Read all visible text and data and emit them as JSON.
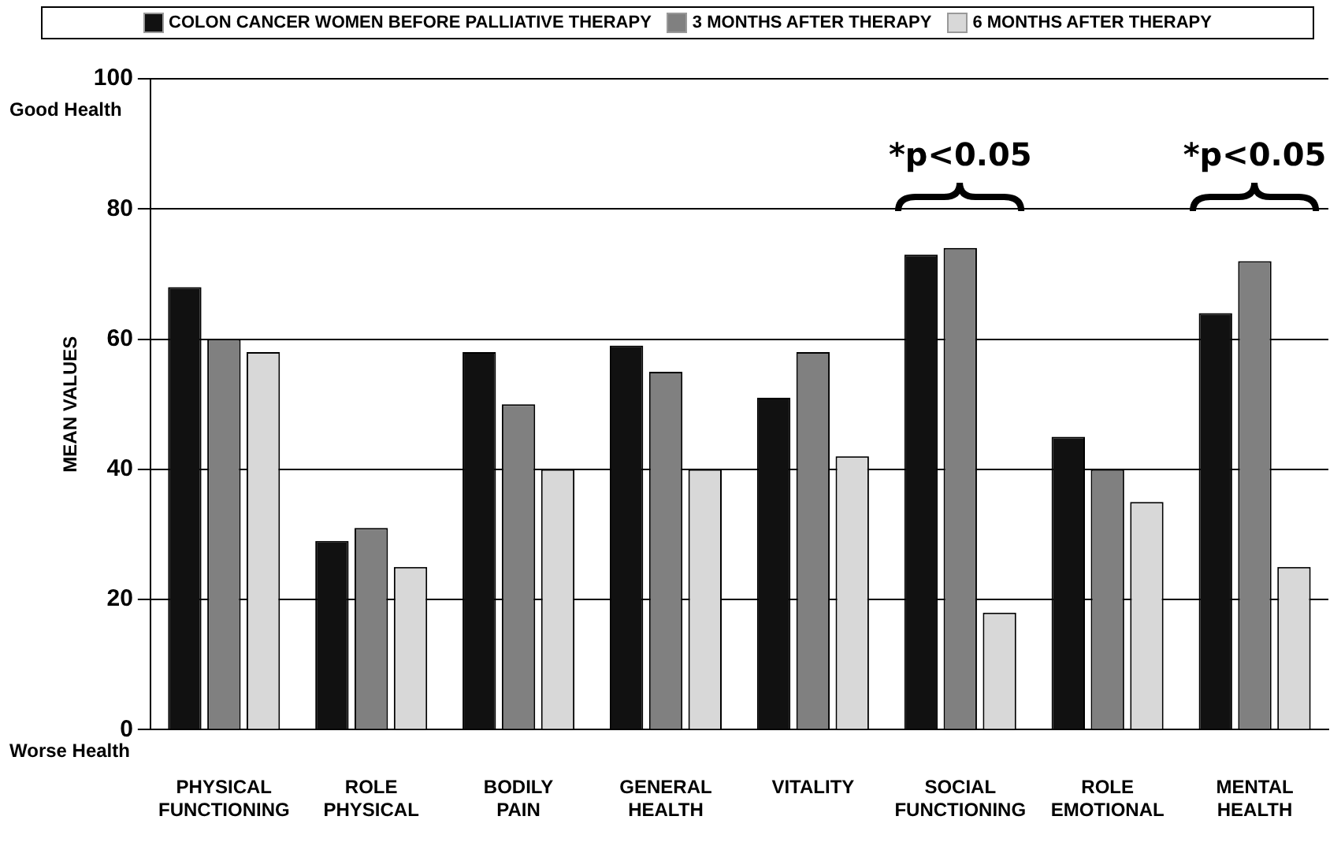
{
  "chart_data": {
    "type": "bar",
    "ylabel": "MEAN VALUES",
    "categories": [
      "PHYSICAL FUNCTIONING",
      "ROLE PHYSICAL",
      "BODILY PAIN",
      "GENERAL HEALTH",
      "VITALITY",
      "SOCIAL FUNCTIONING",
      "ROLE EMOTIONAL",
      "MENTAL HEALTH"
    ],
    "series": [
      {
        "name": "COLON CANCER WOMEN BEFORE PALLIATIVE THERAPY",
        "color": "#111111",
        "values": [
          68,
          29,
          58,
          59,
          51,
          73,
          45,
          64
        ]
      },
      {
        "name": "3 MONTHS AFTER THERAPY",
        "color": "#808080",
        "values": [
          60,
          31,
          50,
          55,
          58,
          74,
          40,
          72
        ]
      },
      {
        "name": "6 MONTHS AFTER THERAPY",
        "color": "#d8d8d8",
        "values": [
          58,
          25,
          40,
          40,
          42,
          18,
          35,
          25
        ]
      }
    ],
    "ylim": [
      0,
      100
    ],
    "yticks": [
      0,
      20,
      40,
      60,
      80,
      100
    ],
    "grid": "y",
    "legend": "top",
    "annotations": [
      "Good Health",
      "Worse Health",
      "*p<0.05",
      "*p<0.05"
    ]
  }
}
